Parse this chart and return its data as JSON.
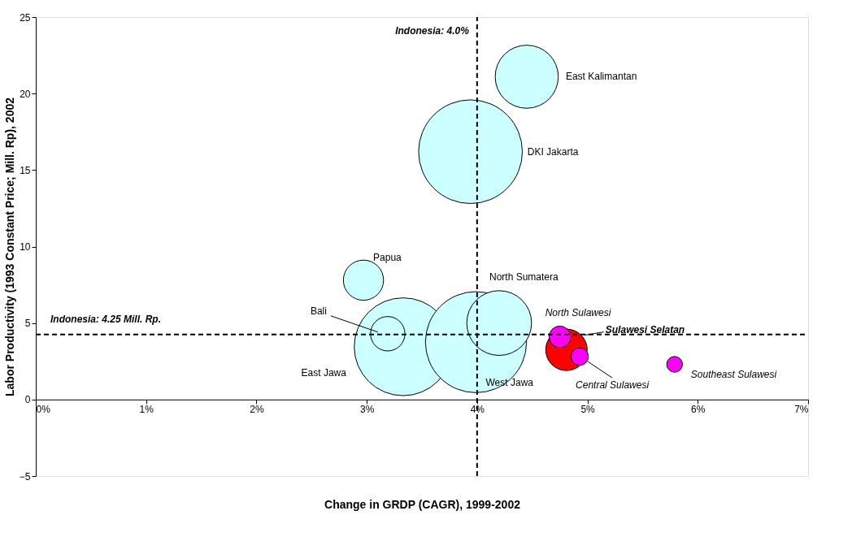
{
  "chart_data": {
    "type": "bubble",
    "xlabel": "Change in GRDP (CAGR), 1999-2002",
    "ylabel": "Labor Productivity (1993 Constant Price; Mill. Rp), 2002",
    "xlim": [
      0,
      7
    ],
    "xticks": [
      {
        "value": 0,
        "label": "0%"
      },
      {
        "value": 1,
        "label": "1%"
      },
      {
        "value": 2,
        "label": "2%"
      },
      {
        "value": 3,
        "label": "3%"
      },
      {
        "value": 4,
        "label": "4%"
      },
      {
        "value": 5,
        "label": "5%"
      },
      {
        "value": 6,
        "label": "6%"
      },
      {
        "value": 7,
        "label": "7%"
      }
    ],
    "ylim": [
      -5,
      25
    ],
    "yticks": [
      -5,
      0,
      5,
      10,
      15,
      20,
      25
    ],
    "grid": false,
    "series": [
      {
        "name": "DKI Jakarta",
        "color": "#ccffff",
        "x": [
          3.94
        ],
        "values": [
          16.2
        ],
        "sizes": [
          1
        ]
      },
      {
        "name": "East Kalimantan",
        "color": "#ccffff",
        "x": [
          4.45
        ],
        "values": [
          21.1
        ],
        "sizes": [
          0.37
        ]
      },
      {
        "name": "Papua",
        "color": "#ccffff",
        "x": [
          2.97
        ],
        "values": [
          7.8
        ],
        "sizes": [
          0.15
        ]
      },
      {
        "name": "East Jawa",
        "color": "#ccffff",
        "x": [
          3.33
        ],
        "values": [
          3.45
        ],
        "sizes": [
          0.89
        ]
      },
      {
        "name": "Bali",
        "color": "#ccffff",
        "x": [
          3.19
        ],
        "values": [
          4.3
        ],
        "sizes": [
          0.11
        ]
      },
      {
        "name": "West Jawa",
        "color": "#ccffff",
        "x": [
          3.99
        ],
        "values": [
          3.75
        ],
        "sizes": [
          0.95
        ]
      },
      {
        "name": "North Sumatera",
        "color": "#ccffff",
        "x": [
          4.2
        ],
        "values": [
          5.0
        ],
        "sizes": [
          0.39
        ]
      },
      {
        "name": "Sulawesi Selatan",
        "color": "#ff0000",
        "x": [
          4.81
        ],
        "values": [
          3.25
        ],
        "sizes": [
          0.16
        ]
      },
      {
        "name": "North Sulawesi",
        "color": "#ff00ff",
        "x": [
          4.75
        ],
        "values": [
          4.1
        ],
        "sizes": [
          0.043
        ]
      },
      {
        "name": "Central Sulawesi",
        "color": "#ff00ff",
        "x": [
          4.93
        ],
        "values": [
          2.8
        ],
        "sizes": [
          0.028
        ]
      },
      {
        "name": "Southeast Sulawesi",
        "color": "#ff00ff",
        "x": [
          5.79
        ],
        "values": [
          2.3
        ],
        "sizes": [
          0.023
        ]
      }
    ],
    "ref_lines": [
      {
        "axis": "x",
        "value": 4.0,
        "label": "Indonesia: 4.0%",
        "color": "#000000",
        "line_style": "dashed"
      },
      {
        "axis": "y",
        "value": 4.25,
        "label": "Indonesia:  4.25 Mill. Rp.",
        "color": "#000000",
        "line_style": "dashed"
      }
    ]
  }
}
